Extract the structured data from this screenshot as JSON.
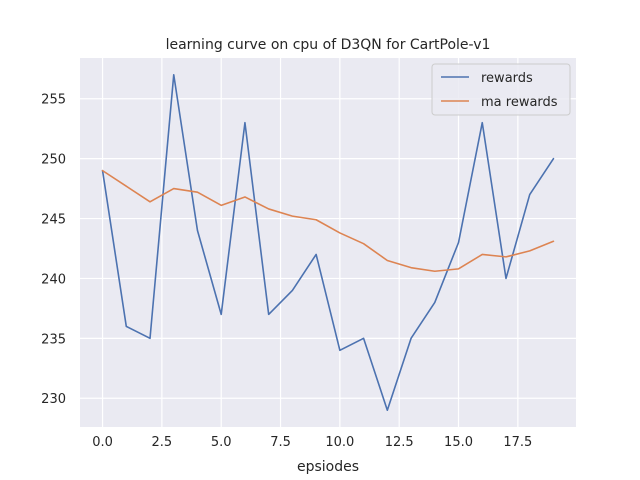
{
  "chart_data": {
    "type": "line",
    "title": "learning curve on cpu of D3QN for CartPole-v1",
    "xlabel": "epsiodes",
    "ylabel": "",
    "x": [
      0,
      1,
      2,
      3,
      4,
      5,
      6,
      7,
      8,
      9,
      10,
      11,
      12,
      13,
      14,
      15,
      16,
      17,
      18,
      19
    ],
    "xlim": [
      -0.95,
      19.95
    ],
    "ylim": [
      227.6,
      258.4
    ],
    "xticks": [
      0.0,
      2.5,
      5.0,
      7.5,
      10.0,
      12.5,
      15.0,
      17.5
    ],
    "xtick_labels": [
      "0.0",
      "2.5",
      "5.0",
      "7.5",
      "10.0",
      "12.5",
      "15.0",
      "17.5"
    ],
    "yticks": [
      230,
      235,
      240,
      245,
      250,
      255
    ],
    "ytick_labels": [
      "230",
      "235",
      "240",
      "245",
      "250",
      "255"
    ],
    "grid": true,
    "legend_position": "top-right",
    "series": [
      {
        "name": "rewards",
        "color": "#4c72b0",
        "values": [
          249,
          236,
          235,
          257,
          244,
          237,
          253,
          237,
          239,
          242,
          234,
          235,
          229,
          235,
          238,
          243,
          253,
          240,
          247,
          250
        ]
      },
      {
        "name": "ma rewards",
        "color": "#dd8452",
        "values": [
          249,
          247.7,
          246.4,
          247.5,
          247.2,
          246.1,
          246.8,
          245.8,
          245.2,
          244.9,
          243.8,
          242.9,
          241.5,
          240.9,
          240.6,
          240.8,
          242.0,
          241.8,
          242.3,
          243.1
        ]
      }
    ]
  },
  "colors": {
    "plot_background": "#eaeaf2",
    "grid": "#ffffff",
    "text": "#262626"
  }
}
